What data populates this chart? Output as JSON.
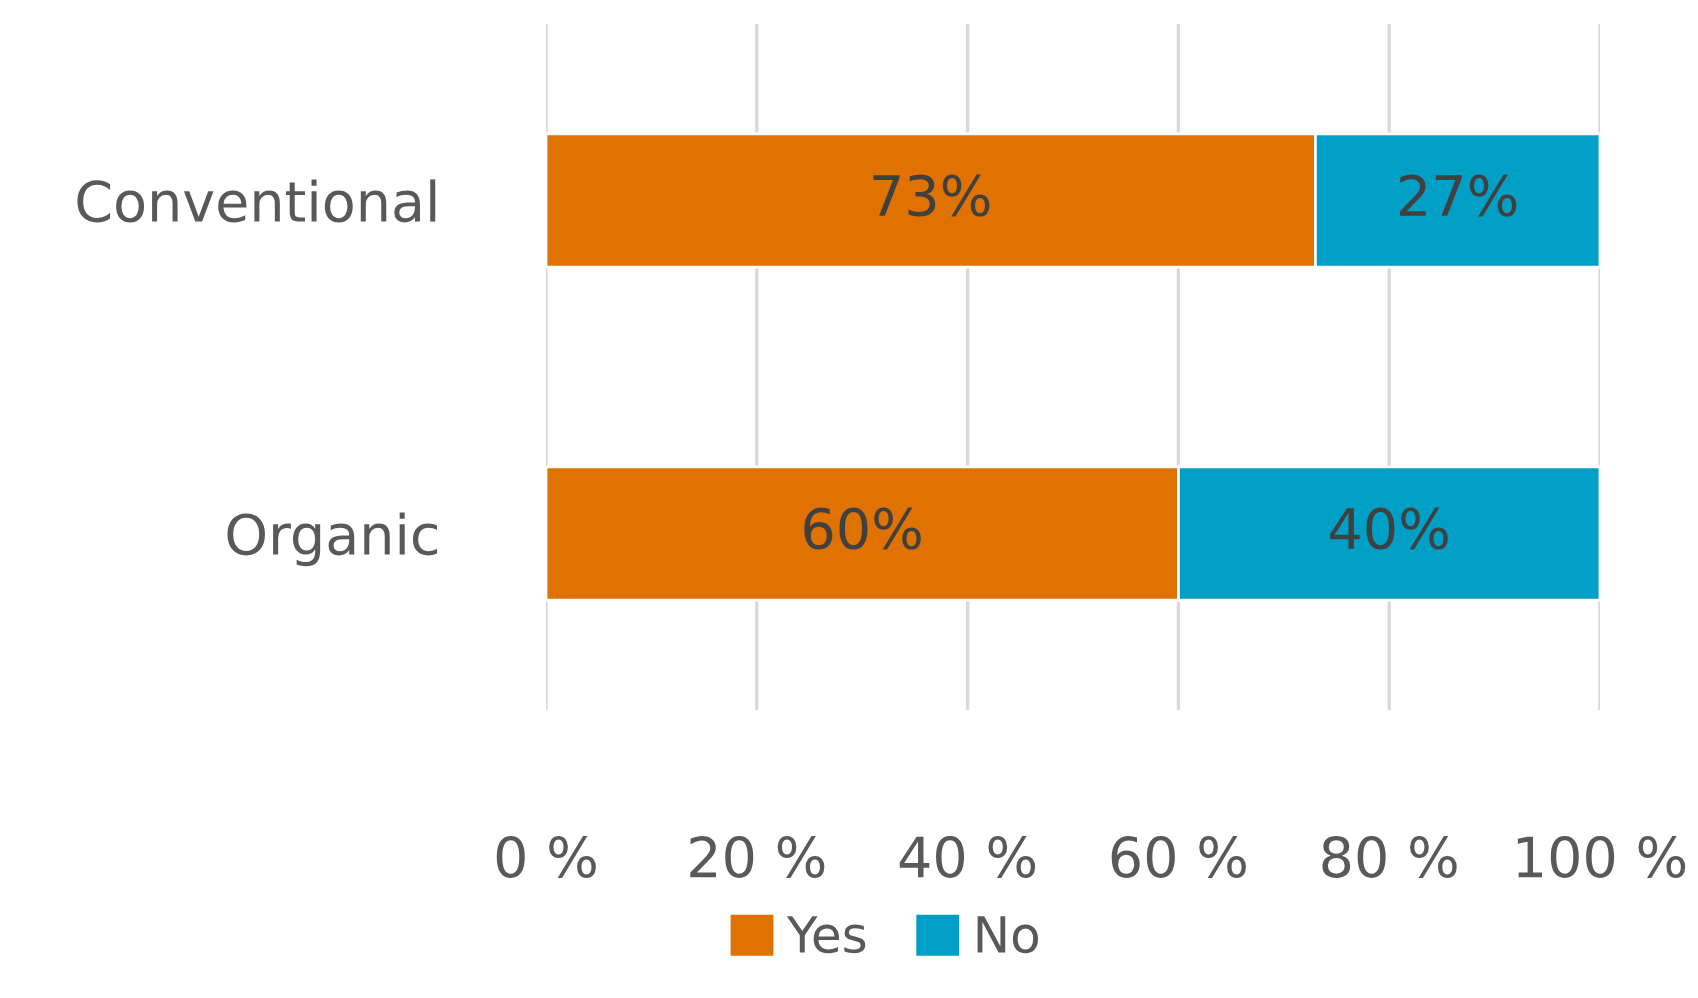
{
  "chart_data": {
    "type": "bar",
    "orientation": "horizontal",
    "stacked": true,
    "categories": [
      "Conventional",
      "Organic"
    ],
    "series": [
      {
        "name": "Yes",
        "color": "#df7200",
        "values": [
          73,
          60
        ],
        "value_labels": [
          "73%",
          "60%"
        ]
      },
      {
        "name": "No",
        "color": "#00a0c6",
        "values": [
          27,
          40
        ],
        "value_labels": [
          "27%",
          "40%"
        ]
      }
    ],
    "xlim": [
      0,
      100
    ],
    "xticks": [
      {
        "value": 0,
        "label": "0 %"
      },
      {
        "value": 20,
        "label": "20 %"
      },
      {
        "value": 40,
        "label": "40 %"
      },
      {
        "value": 60,
        "label": "60 %"
      },
      {
        "value": 80,
        "label": "80 %"
      },
      {
        "value": 100,
        "label": "100 %"
      }
    ],
    "grid": "x",
    "legend": "bottom"
  }
}
